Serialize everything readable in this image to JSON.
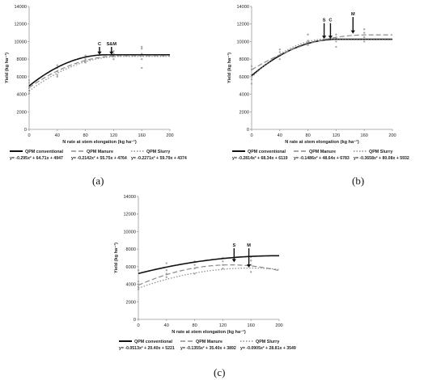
{
  "chart_data": [
    {
      "panel_label": "(a)",
      "type": "line",
      "ylabel": "Yield (kg ha⁻¹)",
      "xlabel": "N rate at stem elongation (kg ha⁻¹)",
      "xlim": [
        0,
        200
      ],
      "ylim": [
        0,
        14000
      ],
      "xticks": [
        0,
        40,
        80,
        120,
        160,
        200
      ],
      "yticks": [
        0,
        2000,
        4000,
        6000,
        8000,
        10000,
        12000,
        14000
      ],
      "series": [
        {
          "name": "QPM conventional",
          "style": "solid",
          "color": "#111111",
          "equation": "y= -0.295x² + 64.71x + 4947",
          "a": -0.295,
          "b": 64.71,
          "c": 4947,
          "plateau_x": 110
        },
        {
          "name": "QPM Manure",
          "style": "dashed",
          "color": "#8a8a8a",
          "equation": "y= -0.2142x² + 55.75x + 4764",
          "a": -0.2142,
          "b": 55.75,
          "c": 4764,
          "plateau_x": 130
        },
        {
          "name": "QPM Slurry",
          "style": "dotted",
          "color": "#8a8a8a",
          "equation": "y= -0.2271x² + 59.79x + 4374",
          "a": -0.2271,
          "b": 59.79,
          "c": 4374,
          "plateau_x": 130
        }
      ],
      "scatter": [
        [
          0,
          4400
        ],
        [
          0,
          4900
        ],
        [
          0,
          5300
        ],
        [
          0,
          4100
        ],
        [
          0,
          4700
        ],
        [
          0,
          5600
        ],
        [
          40,
          6000
        ],
        [
          40,
          6600
        ],
        [
          40,
          7000
        ],
        [
          40,
          7300
        ],
        [
          40,
          6200
        ],
        [
          80,
          7600
        ],
        [
          80,
          8000
        ],
        [
          80,
          8400
        ],
        [
          80,
          7800
        ],
        [
          120,
          8000
        ],
        [
          120,
          8300
        ],
        [
          120,
          8600
        ],
        [
          120,
          8900
        ],
        [
          160,
          7000
        ],
        [
          160,
          8000
        ],
        [
          160,
          8600
        ],
        [
          160,
          9200
        ],
        [
          160,
          9400
        ]
      ],
      "annotations": [
        {
          "label": "C",
          "x": 100,
          "y_top": 9400,
          "y_tip": 8500
        },
        {
          "label": "S&M",
          "x": 117,
          "y_top": 9400,
          "y_tip": 8500
        }
      ]
    },
    {
      "panel_label": "(b)",
      "type": "line",
      "ylabel": "Yield (kg ha⁻¹)",
      "xlabel": "N rate at stem elongation (kg ha⁻¹)",
      "xlim": [
        0,
        200
      ],
      "ylim": [
        0,
        14000
      ],
      "xticks": [
        0,
        40,
        80,
        120,
        160,
        200
      ],
      "yticks": [
        0,
        2000,
        4000,
        6000,
        8000,
        10000,
        12000,
        14000
      ],
      "series": [
        {
          "name": "QPM conventional",
          "style": "solid",
          "color": "#111111",
          "equation": "y= -0.2814x² + 68.34x + 6119",
          "a": -0.2814,
          "b": 68.34,
          "c": 6119,
          "plateau_x": 121
        },
        {
          "name": "QPM Manure",
          "style": "dashed",
          "color": "#8a8a8a",
          "equation": "y= -0.1486x² + 48.64x + 6783",
          "a": -0.1486,
          "b": 48.64,
          "c": 6783,
          "plateau_x": 164
        },
        {
          "name": "QPM Slurry",
          "style": "dotted",
          "color": "#8a8a8a",
          "equation": "y= -0.3658x² + 80.08x + 5932",
          "a": -0.3658,
          "b": 80.08,
          "c": 5932,
          "plateau_x": 109
        }
      ],
      "scatter": [
        [
          0,
          5200
        ],
        [
          0,
          5700
        ],
        [
          0,
          6200
        ],
        [
          0,
          6800
        ],
        [
          0,
          7200
        ],
        [
          40,
          8000
        ],
        [
          40,
          8400
        ],
        [
          40,
          8800
        ],
        [
          40,
          9100
        ],
        [
          80,
          9600
        ],
        [
          80,
          9900
        ],
        [
          80,
          10100
        ],
        [
          80,
          10800
        ],
        [
          120,
          9400
        ],
        [
          120,
          10000
        ],
        [
          120,
          10400
        ],
        [
          120,
          10800
        ],
        [
          160,
          10000
        ],
        [
          160,
          10500
        ],
        [
          160,
          11000
        ],
        [
          160,
          11400
        ]
      ],
      "annotations": [
        {
          "label": "S",
          "x": 103,
          "y_top": 12100,
          "y_tip": 10300
        },
        {
          "label": "C",
          "x": 112,
          "y_top": 12100,
          "y_tip": 10300
        },
        {
          "label": "M",
          "x": 144,
          "y_top": 12800,
          "y_tip": 10900
        }
      ]
    },
    {
      "panel_label": "(c)",
      "type": "line",
      "ylabel": "Yield (kg ha⁻¹)",
      "xlabel": "N rate at stem elongation (kg ha⁻¹)",
      "xlim": [
        0,
        200
      ],
      "ylim": [
        0,
        14000
      ],
      "xticks": [
        0,
        40,
        80,
        120,
        160,
        200
      ],
      "yticks": [
        0,
        2000,
        4000,
        6000,
        8000,
        10000,
        12000,
        14000
      ],
      "series": [
        {
          "name": "QPM conventional",
          "style": "solid",
          "color": "#111111",
          "equation": "y= -0.0513x² + 20.40x + 5221",
          "a": -0.0513,
          "b": 20.4,
          "c": 5221,
          "plateau_x": 200
        },
        {
          "name": "QPM Manure",
          "style": "dashed",
          "color": "#8a8a8a",
          "equation": "y= -0.1355x² + 35.40x + 3892",
          "a": -0.1355,
          "b": 35.4,
          "c": 3892,
          "plateau_x": 200
        },
        {
          "name": "QPM Slurry",
          "style": "dotted",
          "color": "#8a8a8a",
          "equation": "y= -0.0905x² + 28.81x + 3549",
          "a": -0.0905,
          "b": 28.81,
          "c": 3549,
          "plateau_x": 200
        }
      ],
      "scatter": [
        [
          0,
          3400
        ],
        [
          0,
          3700
        ],
        [
          0,
          4000
        ],
        [
          0,
          4300
        ],
        [
          0,
          5600
        ],
        [
          40,
          4800
        ],
        [
          40,
          5200
        ],
        [
          40,
          5600
        ],
        [
          40,
          6400
        ],
        [
          80,
          5200
        ],
        [
          80,
          5800
        ],
        [
          80,
          6200
        ],
        [
          80,
          6600
        ],
        [
          120,
          5800
        ],
        [
          120,
          6200
        ],
        [
          120,
          6600
        ],
        [
          120,
          7000
        ],
        [
          160,
          5400
        ],
        [
          160,
          6200
        ],
        [
          160,
          6700
        ],
        [
          160,
          7100
        ]
      ],
      "annotations": [
        {
          "label": "S",
          "x": 136,
          "y_top": 8100,
          "y_tip": 6500
        },
        {
          "label": "M",
          "x": 157,
          "y_top": 8100,
          "y_tip": 5900
        }
      ]
    }
  ]
}
